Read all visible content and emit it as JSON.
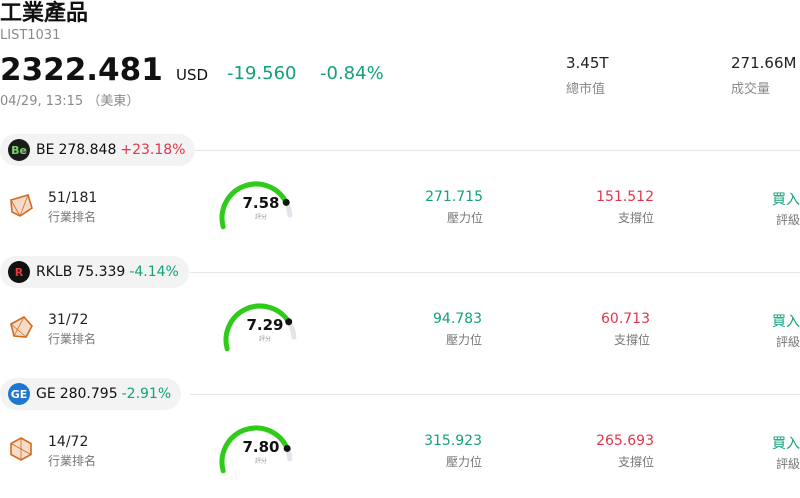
{
  "header": {
    "title": "工業產品",
    "code": "LIST1031",
    "price": "2322.481",
    "currency": "USD",
    "change": "-19.560",
    "change_pct": "-0.84%",
    "time": "04/29, 13:15 （美東）",
    "market_cap_value": "3.45T",
    "market_cap_label": "總市值",
    "volume_value": "271.66M",
    "volume_label": "成交量"
  },
  "stocks": [
    {
      "ticker": "BE",
      "price": "278.848",
      "change_pct": "+23.18%",
      "direction": "up",
      "logo_text": "Be",
      "logo_bg": "#1b1b1b",
      "logo_fg": "#7ad36a",
      "rank_value": "51/181",
      "rank_label": "行業排名",
      "score": "7.58",
      "score_level": 0.758,
      "score_label": "評分",
      "resistance_value": "271.715",
      "resistance_label": "壓力位",
      "support_value": "151.512",
      "support_label": "支撐位",
      "rating_value": "買入",
      "rating_label": "評級"
    },
    {
      "ticker": "RKLB",
      "price": "75.339",
      "change_pct": "-4.14%",
      "direction": "down",
      "logo_text": "R",
      "logo_bg": "#111111",
      "logo_fg": "#e23b3b",
      "rank_value": "31/72",
      "rank_label": "行業排名",
      "score": "7.29",
      "score_level": 0.729,
      "score_label": "評分",
      "resistance_value": "94.783",
      "resistance_label": "壓力位",
      "support_value": "60.713",
      "support_label": "支撐位",
      "rating_value": "買入",
      "rating_label": "評級"
    },
    {
      "ticker": "GE",
      "price": "280.795",
      "change_pct": "-2.91%",
      "direction": "down",
      "logo_text": "GE",
      "logo_bg": "#1f77d2",
      "logo_fg": "#ffffff",
      "rank_value": "14/72",
      "rank_label": "行業排名",
      "score": "7.80",
      "score_level": 0.78,
      "score_label": "評分",
      "resistance_value": "315.923",
      "resistance_label": "壓力位",
      "support_value": "265.693",
      "support_label": "支撐位",
      "rating_value": "買入",
      "rating_label": "評級"
    }
  ]
}
